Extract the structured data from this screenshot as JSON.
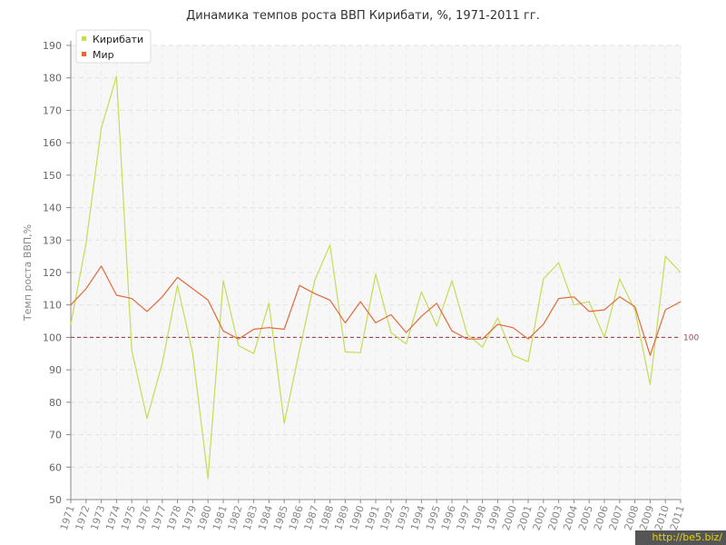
{
  "chart_data": {
    "type": "line",
    "title": "Динамика темпов роста ВВП Кирибати, %, 1971-2011 гг.",
    "ylabel": "Темп роста ВВП,%",
    "xlabel": "",
    "ylim": [
      50,
      190
    ],
    "yticks": [
      50,
      60,
      70,
      80,
      90,
      100,
      110,
      120,
      130,
      140,
      150,
      160,
      170,
      180,
      190
    ],
    "grid": true,
    "legend_position": "top-left",
    "categories": [
      "1971",
      "1972",
      "1973",
      "1974",
      "1975",
      "1976",
      "1977",
      "1978",
      "1979",
      "1980",
      "1981",
      "1982",
      "1983",
      "1984",
      "1985",
      "1986",
      "1987",
      "1988",
      "1989",
      "1990",
      "1991",
      "1992",
      "1993",
      "1994",
      "1995",
      "1996",
      "1997",
      "1998",
      "1999",
      "2000",
      "2001",
      "2002",
      "2003",
      "2004",
      "2005",
      "2006",
      "2007",
      "2008",
      "2009",
      "2010",
      "2011"
    ],
    "series": [
      {
        "name": "Кирибати",
        "color": "#c3dd55",
        "values": [
          104,
          129,
          164.5,
          180.5,
          96,
          75,
          92,
          116,
          95,
          56.5,
          117.5,
          97.5,
          95,
          110.5,
          73.5,
          96,
          117.5,
          128.5,
          95.5,
          95.3,
          119.5,
          101.5,
          98,
          114,
          103.5,
          117.5,
          101,
          97,
          106,
          94.5,
          92.5,
          118,
          123,
          110,
          111,
          100,
          118,
          108.5,
          85.5,
          125,
          120
        ]
      },
      {
        "name": "Мир",
        "color": "#e06a3c",
        "values": [
          110,
          115,
          122,
          113,
          112,
          108,
          112.5,
          118.5,
          115,
          111.5,
          102,
          99.5,
          102.5,
          103,
          102.5,
          116,
          113.5,
          111.5,
          104.5,
          111,
          104.5,
          107,
          101.5,
          106.5,
          110.5,
          102,
          99.5,
          99.5,
          104,
          103,
          99.5,
          104,
          112,
          112.5,
          108,
          108.5,
          112.5,
          109.5,
          94.5,
          108.5,
          111
        ]
      }
    ],
    "reference_line": {
      "value": 100,
      "label": "100",
      "color": "#9a4a55"
    }
  },
  "watermark": "http://be5.biz/"
}
